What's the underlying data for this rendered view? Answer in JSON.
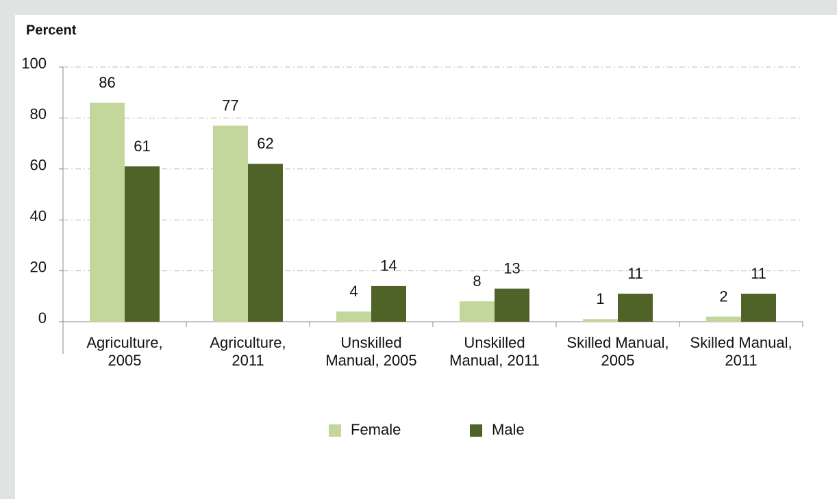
{
  "chart_data": {
    "type": "bar",
    "title": "Percent",
    "categories": [
      "Agriculture, 2005",
      "Agriculture, 2011",
      "Unskilled Manual, 2005",
      "Unskilled Manual, 2011",
      "Skilled Manual, 2005",
      "Skilled Manual, 2011"
    ],
    "series": [
      {
        "name": "Female",
        "color": "#c3d69b",
        "values": [
          86,
          77,
          4,
          8,
          1,
          2
        ]
      },
      {
        "name": "Male",
        "color": "#4f6228",
        "values": [
          61,
          62,
          14,
          13,
          11,
          11
        ]
      }
    ],
    "ylim": [
      0,
      100
    ],
    "yticks": [
      0,
      20,
      40,
      60,
      80,
      100
    ],
    "grid": true,
    "legend": "bottom"
  }
}
